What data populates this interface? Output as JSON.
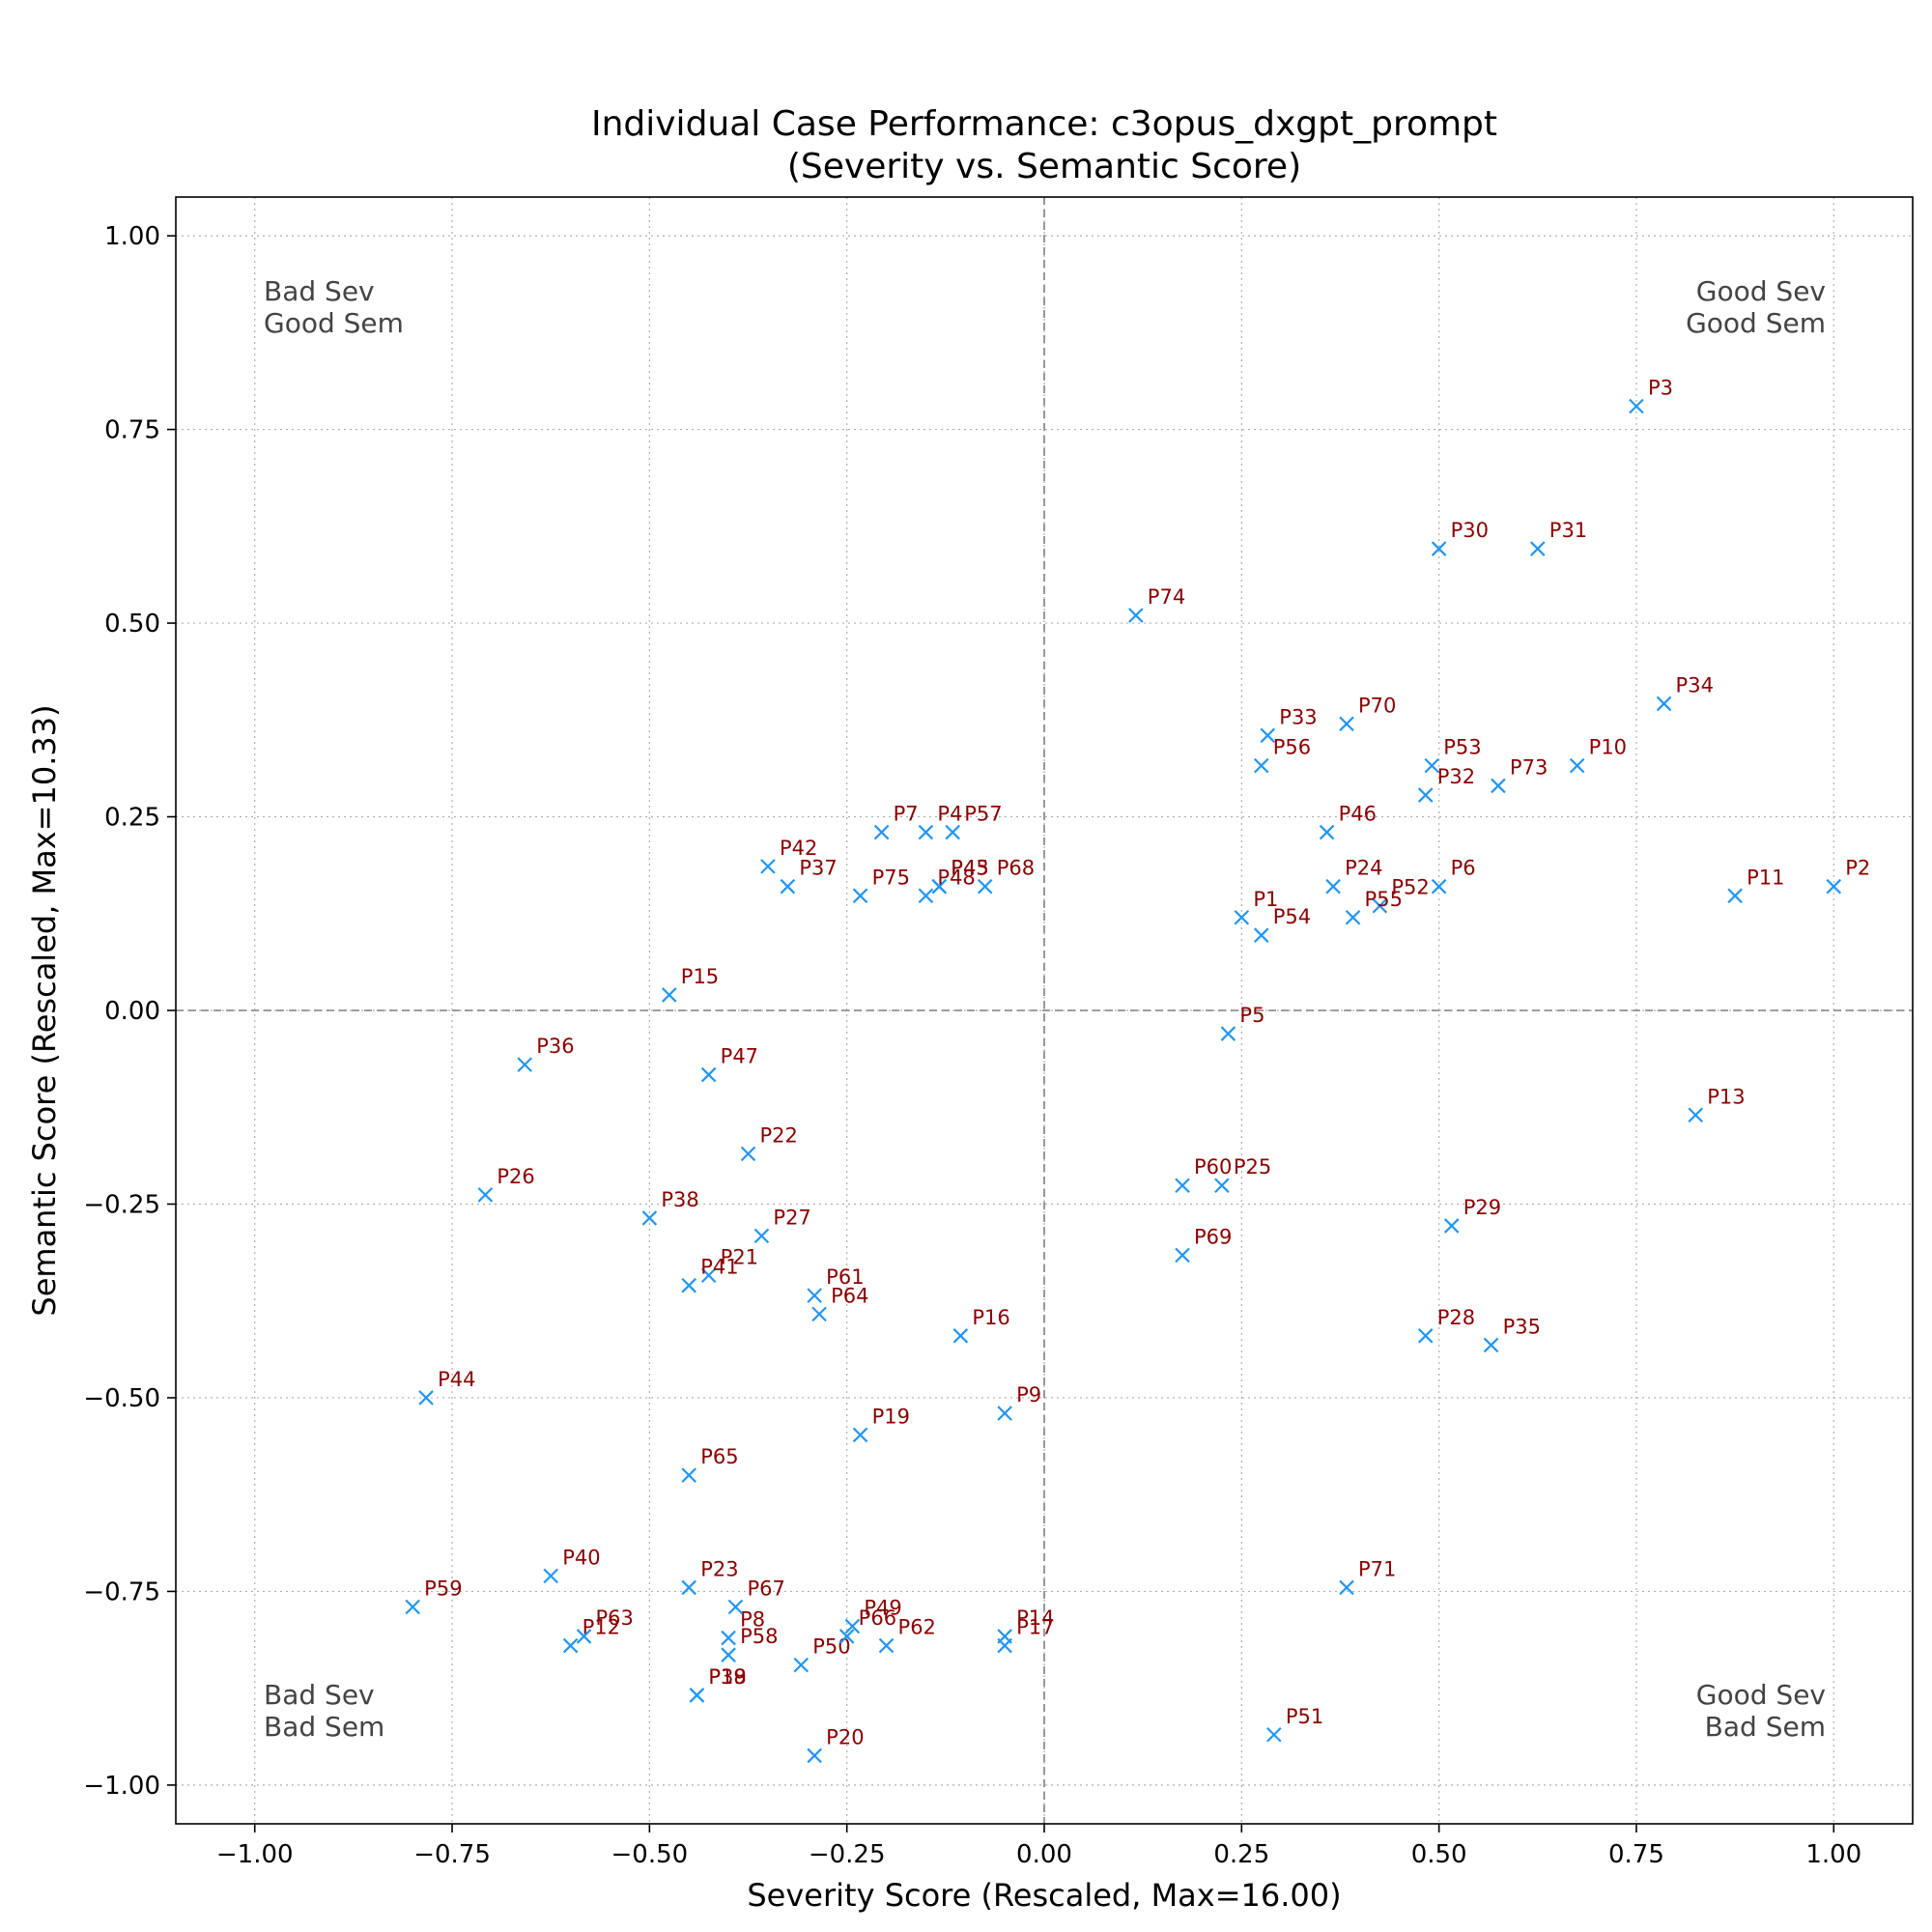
{
  "chart_data": {
    "type": "scatter",
    "title": "Individual Case Performance: c3opus_dxgpt_prompt",
    "subtitle": "(Severity vs. Semantic Score)",
    "xlabel": "Severity Score (Rescaled, Max=16.00)",
    "ylabel": "Semantic Score (Rescaled, Max=10.33)",
    "xlim": [
      -1.1,
      1.1
    ],
    "ylim": [
      -1.05,
      1.05
    ],
    "xticks": [
      -1.0,
      -0.75,
      -0.5,
      -0.25,
      0.0,
      0.25,
      0.5,
      0.75,
      1.0
    ],
    "yticks": [
      -1.0,
      -0.75,
      -0.5,
      -0.25,
      0.0,
      0.25,
      0.5,
      0.75,
      1.0
    ],
    "xtick_labels": [
      "−1.00",
      "−0.75",
      "−0.50",
      "−0.25",
      "0.00",
      "0.25",
      "0.50",
      "0.75",
      "1.00"
    ],
    "ytick_labels": [
      "−1.00",
      "−0.75",
      "−0.50",
      "−0.25",
      "0.00",
      "0.25",
      "0.50",
      "0.75",
      "1.00"
    ],
    "grid": true,
    "marker": "x",
    "marker_color": "#2196f3",
    "label_color": "#8b0000",
    "quadrant_labels": {
      "top_left": [
        "Bad Sev",
        "Good Sem"
      ],
      "top_right": [
        "Good Sev",
        "Good Sem"
      ],
      "bottom_left": [
        "Bad Sev",
        "Bad Sem"
      ],
      "bottom_right": [
        "Good Sev",
        "Bad Sem"
      ]
    },
    "points": [
      {
        "label": "P1",
        "x": 0.25,
        "y": 0.12
      },
      {
        "label": "P2",
        "x": 1.0,
        "y": 0.16
      },
      {
        "label": "P3",
        "x": 0.75,
        "y": 0.78
      },
      {
        "label": "P4",
        "x": -0.15,
        "y": 0.23
      },
      {
        "label": "P5",
        "x": 0.233,
        "y": -0.03
      },
      {
        "label": "P6",
        "x": 0.5,
        "y": 0.16
      },
      {
        "label": "P7",
        "x": -0.206,
        "y": 0.23
      },
      {
        "label": "P8",
        "x": -0.4,
        "y": -0.81
      },
      {
        "label": "P9",
        "x": -0.05,
        "y": -0.52
      },
      {
        "label": "P10",
        "x": 0.675,
        "y": 0.316
      },
      {
        "label": "P11",
        "x": 0.875,
        "y": 0.148
      },
      {
        "label": "P12",
        "x": -0.6,
        "y": -0.82
      },
      {
        "label": "P13",
        "x": 0.825,
        "y": -0.135
      },
      {
        "label": "P14",
        "x": -0.05,
        "y": -0.808
      },
      {
        "label": "P15",
        "x": -0.475,
        "y": 0.02
      },
      {
        "label": "P16",
        "x": -0.106,
        "y": -0.42
      },
      {
        "label": "P17",
        "x": -0.05,
        "y": -0.82
      },
      {
        "label": "P18",
        "x": -0.44,
        "y": -0.884
      },
      {
        "label": "P19",
        "x": -0.233,
        "y": -0.548
      },
      {
        "label": "P20",
        "x": -0.291,
        "y": -0.962
      },
      {
        "label": "P21",
        "x": -0.425,
        "y": -0.342
      },
      {
        "label": "P22",
        "x": -0.375,
        "y": -0.185
      },
      {
        "label": "P23",
        "x": -0.45,
        "y": -0.745
      },
      {
        "label": "P24",
        "x": 0.366,
        "y": 0.16
      },
      {
        "label": "P25",
        "x": 0.225,
        "y": -0.226
      },
      {
        "label": "P26",
        "x": -0.708,
        "y": -0.238
      },
      {
        "label": "P27",
        "x": -0.358,
        "y": -0.291
      },
      {
        "label": "P28",
        "x": 0.483,
        "y": -0.42
      },
      {
        "label": "P29",
        "x": 0.516,
        "y": -0.278
      },
      {
        "label": "P30",
        "x": 0.5,
        "y": 0.596
      },
      {
        "label": "P31",
        "x": 0.625,
        "y": 0.596
      },
      {
        "label": "P32",
        "x": 0.483,
        "y": 0.278
      },
      {
        "label": "P33",
        "x": 0.283,
        "y": 0.355
      },
      {
        "label": "P34",
        "x": 0.785,
        "y": 0.396
      },
      {
        "label": "P35",
        "x": 0.566,
        "y": -0.432
      },
      {
        "label": "P36",
        "x": -0.658,
        "y": -0.07
      },
      {
        "label": "P37",
        "x": -0.325,
        "y": 0.16
      },
      {
        "label": "P38",
        "x": -0.5,
        "y": -0.268
      },
      {
        "label": "P39",
        "x": -0.44,
        "y": -0.884
      },
      {
        "label": "P40",
        "x": -0.625,
        "y": -0.73
      },
      {
        "label": "P41",
        "x": -0.45,
        "y": -0.355
      },
      {
        "label": "P42",
        "x": -0.35,
        "y": 0.186
      },
      {
        "label": "P43",
        "x": -0.133,
        "y": 0.16
      },
      {
        "label": "P44",
        "x": -0.783,
        "y": -0.5
      },
      {
        "label": "P45",
        "x": -0.133,
        "y": 0.16
      },
      {
        "label": "P46",
        "x": 0.358,
        "y": 0.23
      },
      {
        "label": "P47",
        "x": -0.425,
        "y": -0.083
      },
      {
        "label": "P48",
        "x": -0.15,
        "y": 0.148
      },
      {
        "label": "P49",
        "x": -0.243,
        "y": -0.795
      },
      {
        "label": "P50",
        "x": -0.308,
        "y": -0.845
      },
      {
        "label": "P51",
        "x": 0.291,
        "y": -0.935
      },
      {
        "label": "P52",
        "x": 0.425,
        "y": 0.135
      },
      {
        "label": "P53",
        "x": 0.491,
        "y": 0.316
      },
      {
        "label": "P54",
        "x": 0.275,
        "y": 0.097
      },
      {
        "label": "P55",
        "x": 0.391,
        "y": 0.12
      },
      {
        "label": "P56",
        "x": 0.275,
        "y": 0.316
      },
      {
        "label": "P57",
        "x": -0.116,
        "y": 0.23
      },
      {
        "label": "P58",
        "x": -0.4,
        "y": -0.832
      },
      {
        "label": "P59",
        "x": -0.8,
        "y": -0.77
      },
      {
        "label": "P60",
        "x": 0.175,
        "y": -0.226
      },
      {
        "label": "P61",
        "x": -0.291,
        "y": -0.368
      },
      {
        "label": "P62",
        "x": -0.2,
        "y": -0.82
      },
      {
        "label": "P63",
        "x": -0.583,
        "y": -0.808
      },
      {
        "label": "P64",
        "x": -0.285,
        "y": -0.392
      },
      {
        "label": "P65",
        "x": -0.45,
        "y": -0.6
      },
      {
        "label": "P66",
        "x": -0.25,
        "y": -0.808
      },
      {
        "label": "P67",
        "x": -0.391,
        "y": -0.77
      },
      {
        "label": "P68",
        "x": -0.075,
        "y": 0.16
      },
      {
        "label": "P69",
        "x": 0.175,
        "y": -0.316
      },
      {
        "label": "P70",
        "x": 0.383,
        "y": 0.37
      },
      {
        "label": "P71",
        "x": 0.383,
        "y": -0.745
      },
      {
        "label": "P73",
        "x": 0.575,
        "y": 0.29
      },
      {
        "label": "P74",
        "x": 0.116,
        "y": 0.51
      },
      {
        "label": "P75",
        "x": -0.233,
        "y": 0.148
      }
    ]
  }
}
